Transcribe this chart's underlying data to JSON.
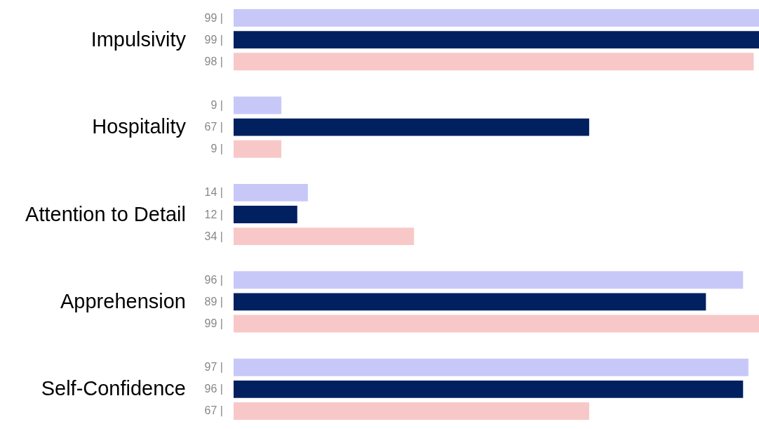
{
  "chart_data": {
    "type": "bar",
    "orientation": "horizontal",
    "categories": [
      "Impulsivity",
      "Hospitality",
      "Attention to Detail",
      "Apprehension",
      "Self-Confidence"
    ],
    "series": [
      {
        "color": "#c8c8f8",
        "values": [
          99,
          9,
          14,
          96,
          97
        ],
        "value_labels": [
          "99 |",
          "9 |",
          "14 |",
          "96 |",
          "97 |"
        ]
      },
      {
        "color": "#00205f",
        "values": [
          99,
          67,
          12,
          89,
          96
        ],
        "value_labels": [
          "99 |",
          "67 |",
          "12 |",
          "89 |",
          "96 |"
        ]
      },
      {
        "color": "#f8c8c8",
        "values": [
          98,
          9,
          34,
          99,
          67
        ],
        "value_labels": [
          "98 |",
          "9 |",
          "34 |",
          "99 |",
          "67 |"
        ]
      }
    ]
  }
}
